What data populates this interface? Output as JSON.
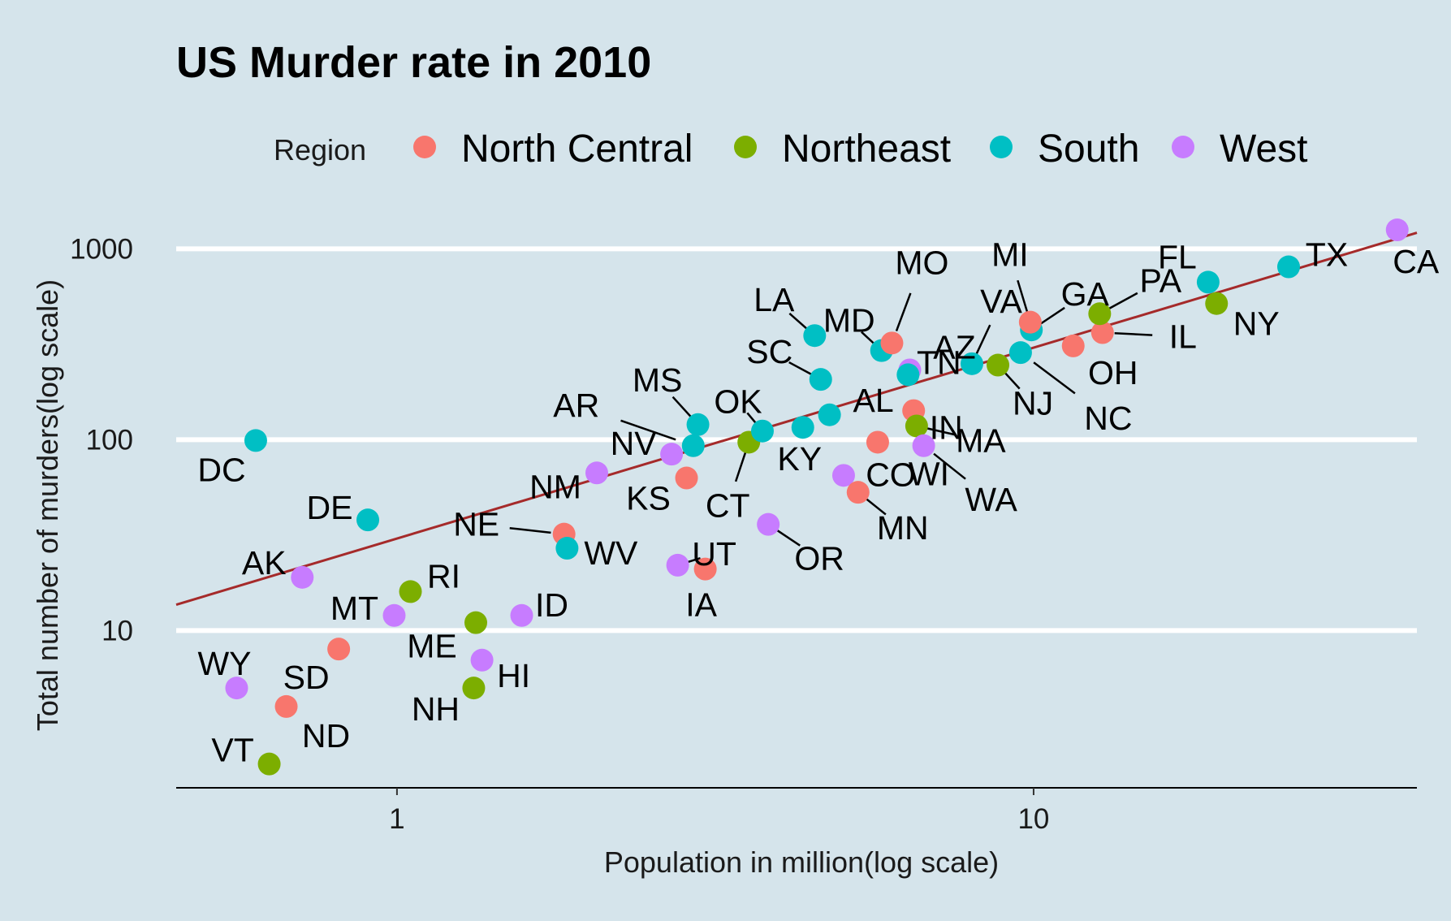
{
  "chart_data": {
    "type": "scatter",
    "title": "US Murder rate in 2010",
    "xlabel": "Population in million(log scale)",
    "ylabel": "Total number of murders(log scale)",
    "xscale": "log",
    "yscale": "log",
    "xlim": [
      0.45,
      40
    ],
    "ylim": [
      1.5,
      1500
    ],
    "x_ticks": [
      1,
      10
    ],
    "x_tick_labels": [
      "1",
      "10"
    ],
    "y_ticks": [
      10,
      100,
      1000
    ],
    "y_tick_labels": [
      "10",
      "100",
      "1000"
    ],
    "grid": "horizontal major lines only",
    "legend": {
      "title": "Region",
      "placement": "top",
      "entries": [
        {
          "name": "North Central",
          "color": "#F8766D"
        },
        {
          "name": "Northeast",
          "color": "#7CAE00"
        },
        {
          "name": "South",
          "color": "#00BFC4"
        },
        {
          "name": "West",
          "color": "#C77CFF"
        }
      ]
    },
    "trend_line": {
      "color": "#a52a2a",
      "slope": 1,
      "intercept_rate_per_million": 30.35
    },
    "points": [
      {
        "label": "AL",
        "region": "South",
        "x": 4.78,
        "y": 135
      },
      {
        "label": "AK",
        "region": "West",
        "x": 0.71,
        "y": 19
      },
      {
        "label": "AZ",
        "region": "West",
        "x": 6.39,
        "y": 232
      },
      {
        "label": "AR",
        "region": "South",
        "x": 2.92,
        "y": 93
      },
      {
        "label": "CA",
        "region": "West",
        "x": 37.25,
        "y": 1257
      },
      {
        "label": "CO",
        "region": "West",
        "x": 5.03,
        "y": 65
      },
      {
        "label": "CT",
        "region": "Northeast",
        "x": 3.57,
        "y": 97
      },
      {
        "label": "DE",
        "region": "South",
        "x": 0.9,
        "y": 38
      },
      {
        "label": "DC",
        "region": "South",
        "x": 0.6,
        "y": 99
      },
      {
        "label": "FL",
        "region": "South",
        "x": 18.8,
        "y": 669
      },
      {
        "label": "GA",
        "region": "South",
        "x": 9.92,
        "y": 376
      },
      {
        "label": "HI",
        "region": "West",
        "x": 1.36,
        "y": 7
      },
      {
        "label": "ID",
        "region": "West",
        "x": 1.57,
        "y": 12
      },
      {
        "label": "IL",
        "region": "North Central",
        "x": 12.83,
        "y": 364
      },
      {
        "label": "IN",
        "region": "North Central",
        "x": 6.48,
        "y": 142
      },
      {
        "label": "IA",
        "region": "North Central",
        "x": 3.05,
        "y": 21
      },
      {
        "label": "KS",
        "region": "North Central",
        "x": 2.85,
        "y": 63
      },
      {
        "label": "KY",
        "region": "South",
        "x": 4.34,
        "y": 116
      },
      {
        "label": "LA",
        "region": "South",
        "x": 4.53,
        "y": 351
      },
      {
        "label": "ME",
        "region": "Northeast",
        "x": 1.33,
        "y": 11
      },
      {
        "label": "MD",
        "region": "South",
        "x": 5.77,
        "y": 293
      },
      {
        "label": "MA",
        "region": "Northeast",
        "x": 6.55,
        "y": 118
      },
      {
        "label": "MI",
        "region": "North Central",
        "x": 9.88,
        "y": 413
      },
      {
        "label": "MN",
        "region": "North Central",
        "x": 5.3,
        "y": 53
      },
      {
        "label": "MS",
        "region": "South",
        "x": 2.97,
        "y": 120
      },
      {
        "label": "MO",
        "region": "North Central",
        "x": 5.99,
        "y": 321
      },
      {
        "label": "MT",
        "region": "West",
        "x": 0.99,
        "y": 12
      },
      {
        "label": "NE",
        "region": "North Central",
        "x": 1.83,
        "y": 32
      },
      {
        "label": "NV",
        "region": "West",
        "x": 2.7,
        "y": 84
      },
      {
        "label": "NH",
        "region": "Northeast",
        "x": 1.32,
        "y": 5
      },
      {
        "label": "NJ",
        "region": "Northeast",
        "x": 8.79,
        "y": 246
      },
      {
        "label": "NM",
        "region": "West",
        "x": 2.06,
        "y": 67
      },
      {
        "label": "NY",
        "region": "Northeast",
        "x": 19.38,
        "y": 517
      },
      {
        "label": "NC",
        "region": "South",
        "x": 9.54,
        "y": 286
      },
      {
        "label": "ND",
        "region": "North Central",
        "x": 0.67,
        "y": 4
      },
      {
        "label": "OH",
        "region": "North Central",
        "x": 11.54,
        "y": 310
      },
      {
        "label": "OK",
        "region": "South",
        "x": 3.75,
        "y": 111
      },
      {
        "label": "OR",
        "region": "West",
        "x": 3.83,
        "y": 36
      },
      {
        "label": "PA",
        "region": "Northeast",
        "x": 12.7,
        "y": 457
      },
      {
        "label": "RI",
        "region": "Northeast",
        "x": 1.05,
        "y": 16
      },
      {
        "label": "SC",
        "region": "South",
        "x": 4.63,
        "y": 207
      },
      {
        "label": "SD",
        "region": "North Central",
        "x": 0.81,
        "y": 8
      },
      {
        "label": "TN",
        "region": "South",
        "x": 6.35,
        "y": 219
      },
      {
        "label": "TX",
        "region": "South",
        "x": 25.15,
        "y": 805
      },
      {
        "label": "UT",
        "region": "West",
        "x": 2.76,
        "y": 22
      },
      {
        "label": "VT",
        "region": "Northeast",
        "x": 0.63,
        "y": 2
      },
      {
        "label": "VA",
        "region": "South",
        "x": 8.0,
        "y": 250
      },
      {
        "label": "WA",
        "region": "West",
        "x": 6.72,
        "y": 93
      },
      {
        "label": "WV",
        "region": "South",
        "x": 1.85,
        "y": 27
      },
      {
        "label": "WI",
        "region": "North Central",
        "x": 5.69,
        "y": 97
      },
      {
        "label": "WY",
        "region": "West",
        "x": 0.56,
        "y": 5
      }
    ]
  }
}
